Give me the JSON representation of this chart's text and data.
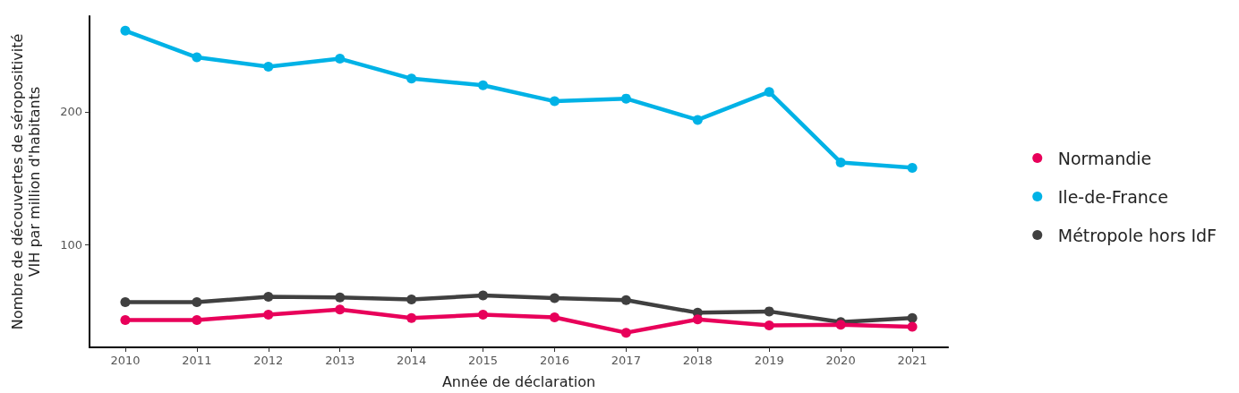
{
  "chart_data": {
    "type": "line",
    "xlabel": "Année de déclaration",
    "ylabel": "Nombre de découvertes de séropositivité\nVIH par million d'habitants",
    "categories": [
      "2010",
      "2011",
      "2012",
      "2013",
      "2014",
      "2015",
      "2016",
      "2017",
      "2018",
      "2019",
      "2020",
      "2021"
    ],
    "series": [
      {
        "name": "Normandie",
        "color": "#e8005a",
        "values": [
          43.5,
          43.5,
          47.5,
          51.5,
          45,
          47.5,
          45.5,
          34,
          44,
          39.5,
          40,
          38.5
        ]
      },
      {
        "name": "Ile-de-France",
        "color": "#00b2e6",
        "values": [
          261,
          241,
          234,
          240,
          225,
          220,
          208,
          210,
          194,
          215,
          162,
          158
        ]
      },
      {
        "name": "Métropole hors IdF",
        "color": "#404040",
        "values": [
          57,
          57,
          61,
          60.5,
          59,
          62,
          60,
          58.5,
          49,
          50,
          42,
          45
        ]
      }
    ],
    "ylim": [
      23,
      272
    ],
    "yticks": [
      100,
      200
    ],
    "grid": false,
    "legend": "right",
    "marker": "circle",
    "line_style": "solid"
  }
}
